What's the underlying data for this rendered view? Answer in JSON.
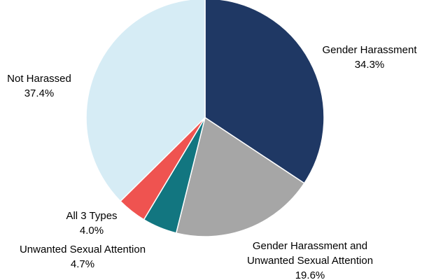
{
  "chart_data": {
    "type": "pie",
    "title": "",
    "start_angle_deg": 0,
    "direction": "clockwise",
    "slices": [
      {
        "label": "Gender Harassment",
        "value_label": "34.3%",
        "value": 34.3,
        "color": "#1f3864"
      },
      {
        "label": "Gender Harassment and Unwanted Sexual Attention",
        "label_lines": [
          "Gender Harassment and",
          "Unwanted Sexual Attention"
        ],
        "value_label": "19.6%",
        "value": 19.6,
        "color": "#a6a6a6"
      },
      {
        "label": "Unwanted Sexual Attention",
        "value_label": "4.7%",
        "value": 4.7,
        "color": "#127680"
      },
      {
        "label": "All 3 Types",
        "value_label": "4.0%",
        "value": 4.0,
        "color": "#ef5350"
      },
      {
        "label": "Not Harassed",
        "value_label": "37.4%",
        "value": 37.4,
        "color": "#d6ecf5"
      }
    ]
  }
}
